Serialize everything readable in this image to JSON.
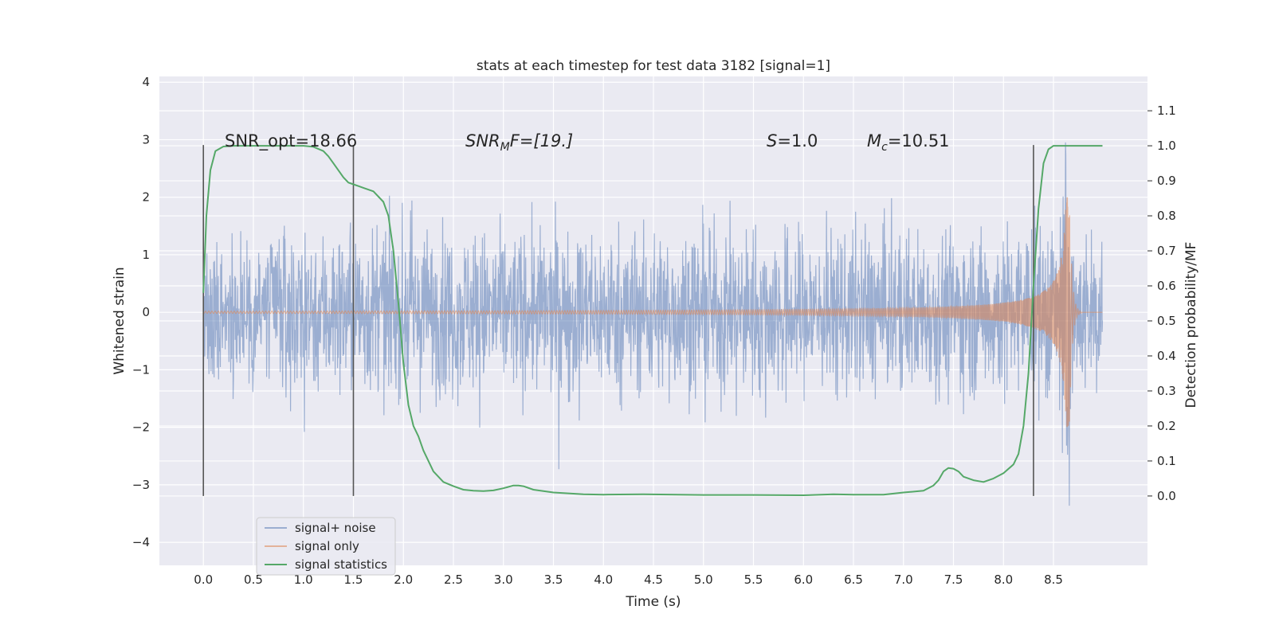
{
  "chart_data": {
    "type": "line",
    "title": "stats at each timestep for test data 3182 [signal=1]",
    "xlabel": "Time (s)",
    "ylabel": "Whitened strain",
    "y2label": "Detection probability/MF",
    "xlim": [
      -0.44,
      9.44
    ],
    "ylim": [
      -4.4,
      4.1
    ],
    "y2lim": [
      -0.198,
      1.198
    ],
    "xticks": [
      "0.0",
      "0.5",
      "1.0",
      "1.5",
      "2.0",
      "2.5",
      "3.0",
      "3.5",
      "4.0",
      "4.5",
      "5.0",
      "5.5",
      "6.0",
      "6.5",
      "7.0",
      "7.5",
      "8.0",
      "8.5"
    ],
    "yticks": [
      "−4",
      "−3",
      "−2",
      "−1",
      "0",
      "1",
      "2",
      "3",
      "4"
    ],
    "y2ticks": [
      "0.0",
      "0.1",
      "0.2",
      "0.3",
      "0.4",
      "0.5",
      "0.6",
      "0.7",
      "0.8",
      "0.9",
      "1.0",
      "1.1"
    ],
    "grid": true,
    "legend_position": "lower-left",
    "annotations": {
      "snr_opt": "SNR_opt=18.66",
      "snr_mf_base": "SNR",
      "snr_mf_sub": "M",
      "snr_mf_rest": "F=[19.]",
      "s_italic": "S",
      "s_rest": "=1.0",
      "mc_base": "M",
      "mc_sub": "c",
      "mc_rest": "=10.51"
    },
    "vlines": [
      0.0,
      1.5,
      8.3
    ],
    "series": [
      {
        "name": "signal+ noise",
        "color": "#4c72b0",
        "kind": "noise",
        "x_range": [
          0.0,
          8.99
        ],
        "typical_amplitude": 1.0,
        "peak_amplitude": 3.7
      },
      {
        "name": "signal only",
        "color": "#dd8452",
        "kind": "chirp",
        "x_range": [
          0.0,
          8.99
        ],
        "merger_time": 8.66,
        "peak_amplitude": 2.0
      },
      {
        "name": "signal statistics",
        "color": "#55a868",
        "axis": "right",
        "x": [
          0.0,
          0.03,
          0.07,
          0.12,
          0.2,
          0.3,
          0.5,
          0.8,
          1.0,
          1.1,
          1.2,
          1.25,
          1.3,
          1.35,
          1.4,
          1.45,
          1.5,
          1.55,
          1.6,
          1.7,
          1.8,
          1.85,
          1.9,
          1.95,
          2.0,
          2.05,
          2.1,
          2.15,
          2.2,
          2.3,
          2.4,
          2.5,
          2.6,
          2.7,
          2.8,
          2.9,
          3.0,
          3.1,
          3.15,
          3.2,
          3.3,
          3.5,
          3.8,
          4.0,
          4.4,
          5.0,
          5.5,
          6.0,
          6.3,
          6.5,
          6.8,
          7.0,
          7.2,
          7.3,
          7.35,
          7.4,
          7.45,
          7.5,
          7.55,
          7.6,
          7.7,
          7.8,
          7.9,
          8.0,
          8.1,
          8.15,
          8.2,
          8.25,
          8.3,
          8.35,
          8.4,
          8.45,
          8.5,
          8.6,
          8.8,
          8.99
        ],
        "values": [
          0.58,
          0.8,
          0.93,
          0.985,
          0.998,
          1.0,
          1.0,
          1.0,
          1.0,
          0.997,
          0.985,
          0.97,
          0.95,
          0.93,
          0.91,
          0.895,
          0.89,
          0.885,
          0.88,
          0.87,
          0.84,
          0.8,
          0.7,
          0.55,
          0.38,
          0.26,
          0.2,
          0.17,
          0.13,
          0.07,
          0.04,
          0.028,
          0.018,
          0.015,
          0.014,
          0.016,
          0.022,
          0.03,
          0.03,
          0.028,
          0.018,
          0.01,
          0.005,
          0.004,
          0.005,
          0.003,
          0.003,
          0.002,
          0.005,
          0.004,
          0.004,
          0.01,
          0.015,
          0.03,
          0.045,
          0.07,
          0.08,
          0.078,
          0.07,
          0.055,
          0.045,
          0.04,
          0.05,
          0.065,
          0.09,
          0.12,
          0.2,
          0.35,
          0.6,
          0.82,
          0.95,
          0.99,
          1.0,
          1.0,
          1.0,
          1.0
        ]
      }
    ]
  }
}
